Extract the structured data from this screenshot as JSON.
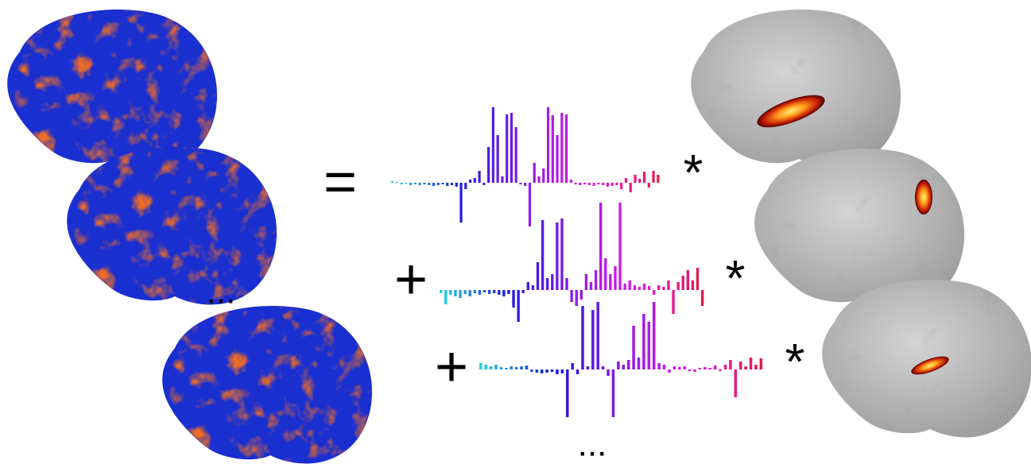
{
  "symbols": {
    "equals": "=",
    "plus": [
      "+",
      "+"
    ],
    "times": [
      "*",
      "*",
      "*"
    ],
    "ellipsis": [
      "...",
      "..."
    ]
  },
  "palette": [
    "#22d3e6",
    "#1a1adc",
    "#8a1ae6",
    "#e61ae6",
    "#e6194b"
  ],
  "signals": [
    {
      "values": [
        2,
        1,
        -2,
        -1,
        -3,
        -2,
        -3,
        -2,
        -3,
        -4,
        -3,
        -2,
        -4,
        -3,
        -5,
        -50,
        -8,
        4,
        6,
        15,
        -3,
        45,
        95,
        60,
        8,
        86,
        88,
        70,
        -2,
        -4,
        -55,
        25,
        8,
        18,
        95,
        85,
        60,
        88,
        86,
        4,
        -2,
        -3,
        -2,
        -3,
        -4,
        -2,
        -3,
        -5,
        -4,
        -3,
        -8,
        6,
        -12,
        10,
        5,
        14,
        -6,
        15,
        10
      ]
    },
    {
      "values": [
        -4,
        -18,
        -6,
        -8,
        -10,
        -5,
        -8,
        -4,
        -6,
        -3,
        -5,
        -4,
        -6,
        -8,
        -5,
        -22,
        -40,
        -4,
        10,
        6,
        35,
        88,
        15,
        20,
        85,
        90,
        15,
        -15,
        -20,
        -12,
        20,
        10,
        25,
        110,
        40,
        20,
        30,
        110,
        8,
        12,
        6,
        4,
        8,
        5,
        -6,
        6,
        4,
        12,
        -30,
        10,
        18,
        25,
        12,
        28,
        -20
      ]
    },
    {
      "values": [
        8,
        6,
        4,
        6,
        3,
        2,
        4,
        3,
        4,
        5,
        -3,
        -4,
        -5,
        -4,
        -3,
        -6,
        -5,
        -60,
        8,
        -6,
        80,
        4,
        75,
        85,
        4,
        -8,
        -60,
        10,
        6,
        12,
        55,
        15,
        70,
        60,
        85,
        8,
        6,
        -4,
        4,
        3,
        4,
        -2,
        -3,
        2,
        3,
        2,
        5,
        -2,
        6,
        12,
        -35,
        10,
        4,
        15,
        6,
        14
      ]
    }
  ]
}
